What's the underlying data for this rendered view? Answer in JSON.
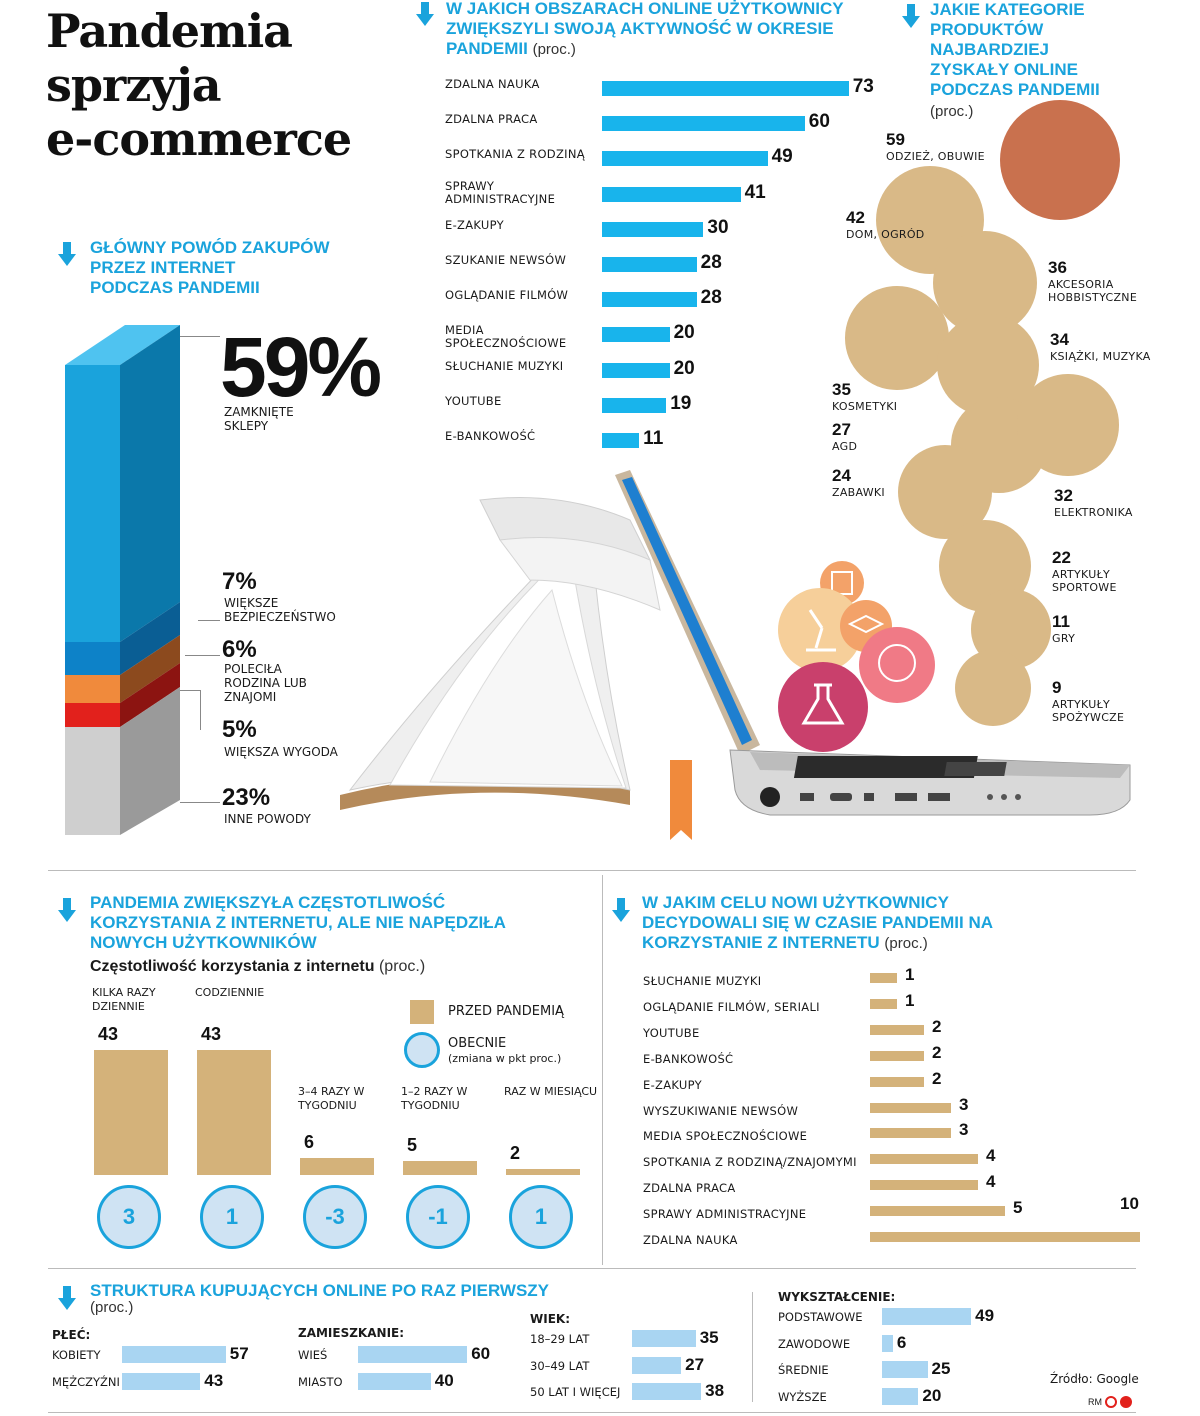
{
  "title": [
    "Pandemia",
    "sprzyja",
    "e-commerce"
  ],
  "main_reason": {
    "heading": [
      "GŁÓWNY POWÓD ZAKUPÓW",
      "PRZEZ INTERNET",
      "PODCZAS PANDEMII"
    ],
    "items": [
      {
        "value": "59%",
        "label": "ZAMKNIĘTE SKLEPY",
        "color": "#1aa3dc"
      },
      {
        "value": "7%",
        "label": "WIĘKSZE BEZPIECZEŃSTWO",
        "color": "#0d82c8"
      },
      {
        "value": "6%",
        "label": "POLECIŁA RODZINA LUB ZNAJOMI",
        "color": "#f08a3c"
      },
      {
        "value": "5%",
        "label": "WIĘKSZA WYGODA",
        "color": "#e2211c"
      },
      {
        "value": "23%",
        "label": "INNE POWODY",
        "color": "#c8c8c8"
      }
    ]
  },
  "chart_data": [
    {
      "type": "bar",
      "title": "W JAKICH OBSZARACH ONLINE UŻYTKOWNICY ZWIĘKSZYLI SWOJĄ AKTYWNOŚĆ W OKRESIE PANDEMII",
      "unit": "(proc.)",
      "categories": [
        "ZDALNA NAUKA",
        "ZDALNA PRACA",
        "SPOTKANIA Z RODZINĄ",
        "SPRAWY ADMINISTRACYJNE",
        "E-ZAKUPY",
        "SZUKANIE NEWSÓW",
        "OGLĄDANIE FILMÓW",
        "MEDIA SPOŁECZNOŚCIOWE",
        "SŁUCHANIE MUZYKI",
        "YOUTUBE",
        "E-BANKOWOŚĆ"
      ],
      "values": [
        73,
        60,
        49,
        41,
        30,
        28,
        28,
        20,
        20,
        19,
        11
      ],
      "color": "#18b4ec"
    },
    {
      "type": "bubble",
      "title": "JAKIE KATEGORIE PRODUKTÓW NAJBARDZIEJ ZYSKAŁY ONLINE PODCZAS PANDEMII",
      "unit": "(proc.)",
      "categories": [
        "ODZIEŻ, OBUWIE",
        "DOM, OGRÓD",
        "AKCESORIA HOBBISTYCZNE",
        "KOSMETYKI",
        "KSIĄŻKI, MUZYKA",
        "AGD",
        "ELEKTRONIKA",
        "ZABAWKI",
        "ARTYKUŁY SPORTOWE",
        "GRY",
        "ARTYKUŁY SPOŻYWCZE"
      ],
      "values": [
        59,
        42,
        36,
        35,
        34,
        27,
        32,
        24,
        22,
        11,
        9
      ]
    },
    {
      "type": "bar",
      "title": "PANDEMIA ZWIĘKSZYŁA CZĘSTOTLIWOŚĆ KORZYSTANIA Z INTERNETU, ALE NIE NAPĘDZIŁA NOWYCH UŻYTKOWNIKÓW",
      "subtitle": "Częstotliwość korzystania z internetu",
      "unit": "(proc.)",
      "categories": [
        "KILKA RAZY DZIENNIE",
        "CODZIENNIE",
        "3–4 RAZY W TYGODNIU",
        "1–2 RAZY W TYGODNIU",
        "RAZ W MIESIĄCU"
      ],
      "series": [
        {
          "name": "PRZED PANDEMIĄ",
          "values": [
            43,
            43,
            6,
            5,
            2
          ]
        },
        {
          "name": "OBECNIE",
          "values": [
            3,
            1,
            -3,
            -1,
            1
          ]
        }
      ],
      "legend": [
        "PRZED PANDEMIĄ",
        "OBECNIE",
        "(zmiana w pkt proc.)"
      ]
    },
    {
      "type": "bar",
      "title": "W JAKIM CELU NOWI UŻYTKOWNICY DECYDOWALI SIĘ W CZASIE PANDEMII NA KORZYSTANIE Z INTERNETU",
      "unit": "(proc.)",
      "categories": [
        "SŁUCHANIE MUZYKI",
        "OGLĄDANIE FILMÓW, SERIALI",
        "YOUTUBE",
        "E-BANKOWOŚĆ",
        "E-ZAKUPY",
        "WYSZUKIWANIE NEWSÓW",
        "MEDIA SPOŁECZNOŚCIOWE",
        "SPOTKANIA Z RODZINĄ/ZNAJOMYMI",
        "ZDALNA PRACA",
        "SPRAWY ADMINISTRACYJNE",
        "ZDALNA NAUKA"
      ],
      "values": [
        1,
        1,
        2,
        2,
        2,
        3,
        3,
        4,
        4,
        5,
        10
      ],
      "color": "#d4b27a"
    },
    {
      "type": "bar",
      "title": "STRUKTURA KUPUJĄCYCH ONLINE PO RAZ PIERWSZY",
      "unit": "(proc.)",
      "groups": [
        {
          "name": "PŁEĆ:",
          "categories": [
            "KOBIETY",
            "MĘŻCZYŹNI"
          ],
          "values": [
            57,
            43
          ]
        },
        {
          "name": "ZAMIESZKANIE:",
          "categories": [
            "WIEŚ",
            "MIASTO"
          ],
          "values": [
            60,
            40
          ]
        },
        {
          "name": "WIEK:",
          "categories": [
            "18–29 LAT",
            "30–49 LAT",
            "50 LAT I WIĘCEJ"
          ],
          "values": [
            35,
            27,
            38
          ]
        },
        {
          "name": "WYKSZTAŁCENIE:",
          "categories": [
            "PODSTAWOWE",
            "ZAWODOWE",
            "ŚREDNIE",
            "WYŻSZE"
          ],
          "values": [
            49,
            6,
            25,
            20
          ]
        }
      ],
      "color": "#a9d5f2"
    }
  ],
  "source": "Źródło: Google",
  "credit": "RM"
}
